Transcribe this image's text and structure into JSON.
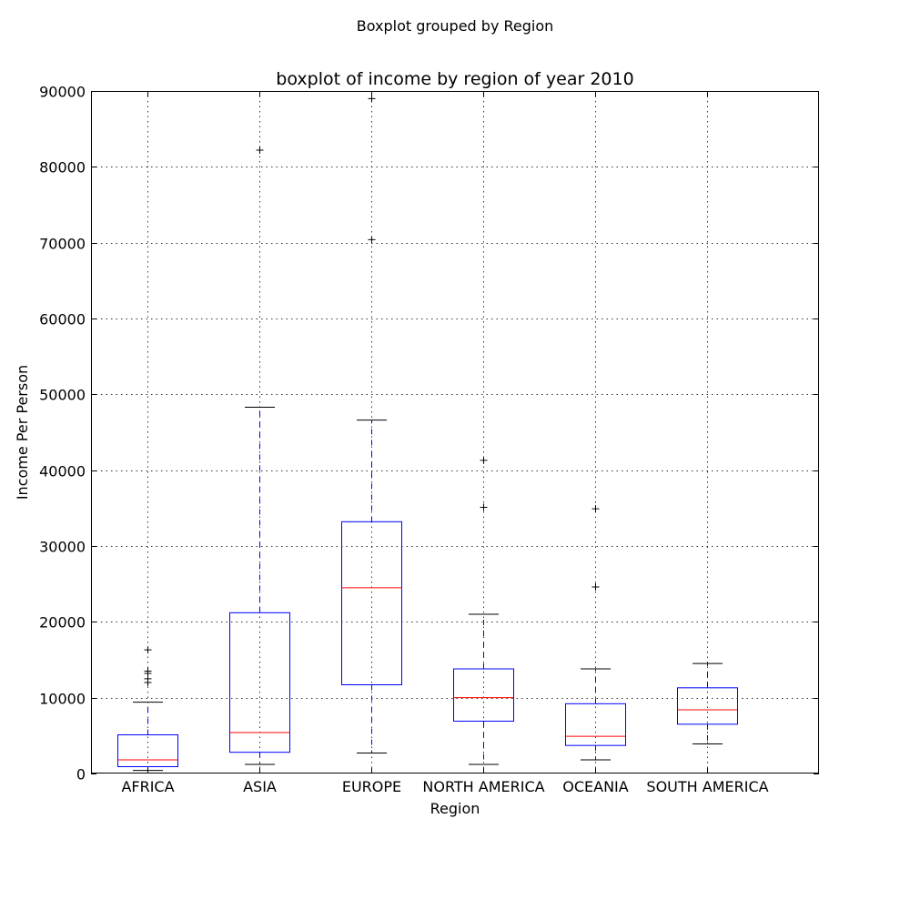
{
  "figure": {
    "suptitle": "Boxplot grouped by Region"
  },
  "chart_data": {
    "type": "boxplot",
    "title": "boxplot of income by region of year 2010",
    "xlabel": "Region",
    "ylabel": "Income Per Person",
    "ylim": [
      0,
      90000
    ],
    "yticks": [
      "0",
      "10000",
      "20000",
      "30000",
      "40000",
      "50000",
      "60000",
      "70000",
      "80000",
      "90000"
    ],
    "grid": true,
    "colors": {
      "box": "#0000ff",
      "median": "#ff0000",
      "caps": "#000000",
      "fliers": "#000000"
    },
    "categories": [
      "AFRICA",
      "ASIA",
      "EUROPE",
      "NORTH AMERICA",
      "OCEANIA",
      "SOUTH AMERICA"
    ],
    "boxes": [
      {
        "category": "AFRICA",
        "whisker_low": 400,
        "q1": 900,
        "median": 1800,
        "q3": 5100,
        "whisker_high": 9400,
        "fliers": [
          12000,
          12500,
          13200,
          13500,
          16300
        ]
      },
      {
        "category": "ASIA",
        "whisker_low": 1200,
        "q1": 2800,
        "median": 5400,
        "q3": 21200,
        "whisker_high": 48300,
        "fliers": [
          82200
        ]
      },
      {
        "category": "EUROPE",
        "whisker_low": 2700,
        "q1": 11700,
        "median": 24500,
        "q3": 33200,
        "whisker_high": 46600,
        "fliers": [
          70400,
          89000
        ]
      },
      {
        "category": "NORTH AMERICA",
        "whisker_low": 1200,
        "q1": 6900,
        "median": 10000,
        "q3": 13800,
        "whisker_high": 21000,
        "fliers": [
          35100,
          41300
        ]
      },
      {
        "category": "OCEANIA",
        "whisker_low": 1800,
        "q1": 3700,
        "median": 4900,
        "q3": 9200,
        "whisker_high": 13800,
        "fliers": [
          24600,
          34900
        ]
      },
      {
        "category": "SOUTH AMERICA",
        "whisker_low": 3900,
        "q1": 6500,
        "median": 8400,
        "q3": 11300,
        "whisker_high": 14500,
        "fliers": []
      }
    ]
  }
}
